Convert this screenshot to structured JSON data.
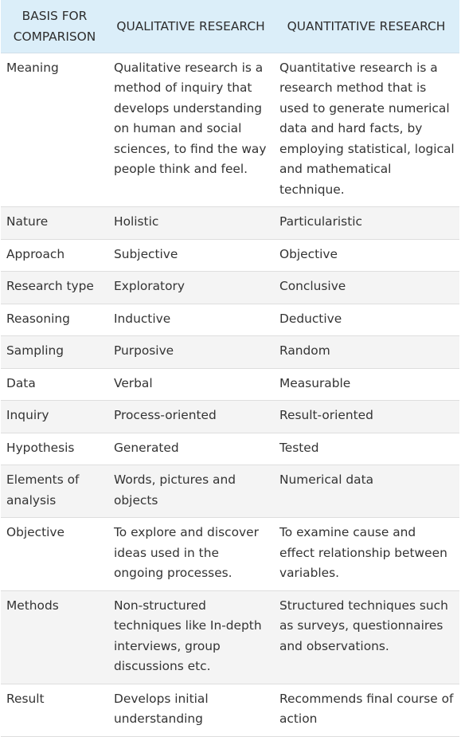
{
  "headers": [
    "BASIS FOR COMPARISON",
    "QUALITATIVE RESEARCH",
    "QUANTITATIVE RESEARCH"
  ],
  "rows": [
    {
      "basis": "Meaning",
      "qualitative": "Qualitative research is a method of inquiry that develops understanding on human and social sciences, to find the way people think and feel.",
      "quantitative": "Quantitative research is a research method that is used to generate numerical data and hard facts, by employing statistical, logical and mathematical technique."
    },
    {
      "basis": "Nature",
      "qualitative": "Holistic",
      "quantitative": "Particularistic"
    },
    {
      "basis": "Approach",
      "qualitative": "Subjective",
      "quantitative": "Objective"
    },
    {
      "basis": "Research type",
      "qualitative": "Exploratory",
      "quantitative": "Conclusive"
    },
    {
      "basis": "Reasoning",
      "qualitative": "Inductive",
      "quantitative": "Deductive"
    },
    {
      "basis": "Sampling",
      "qualitative": "Purposive",
      "quantitative": "Random"
    },
    {
      "basis": "Data",
      "qualitative": "Verbal",
      "quantitative": "Measurable"
    },
    {
      "basis": "Inquiry",
      "qualitative": "Process-oriented",
      "quantitative": "Result-oriented"
    },
    {
      "basis": "Hypothesis",
      "qualitative": "Generated",
      "quantitative": "Tested"
    },
    {
      "basis": "Elements of analysis",
      "qualitative": "Words, pictures and objects",
      "quantitative": "Numerical data"
    },
    {
      "basis": "Objective",
      "qualitative": "To explore and discover ideas used in the ongoing processes.",
      "quantitative": "To examine cause and effect relationship between variables."
    },
    {
      "basis": "Methods",
      "qualitative": "Non-structured techniques like In-depth interviews, group discussions etc.",
      "quantitative": "Structured techniques such as surveys, questionnaires and observations."
    },
    {
      "basis": "Result",
      "qualitative": "Develops initial understanding",
      "quantitative": "Recommends final course of action"
    }
  ]
}
